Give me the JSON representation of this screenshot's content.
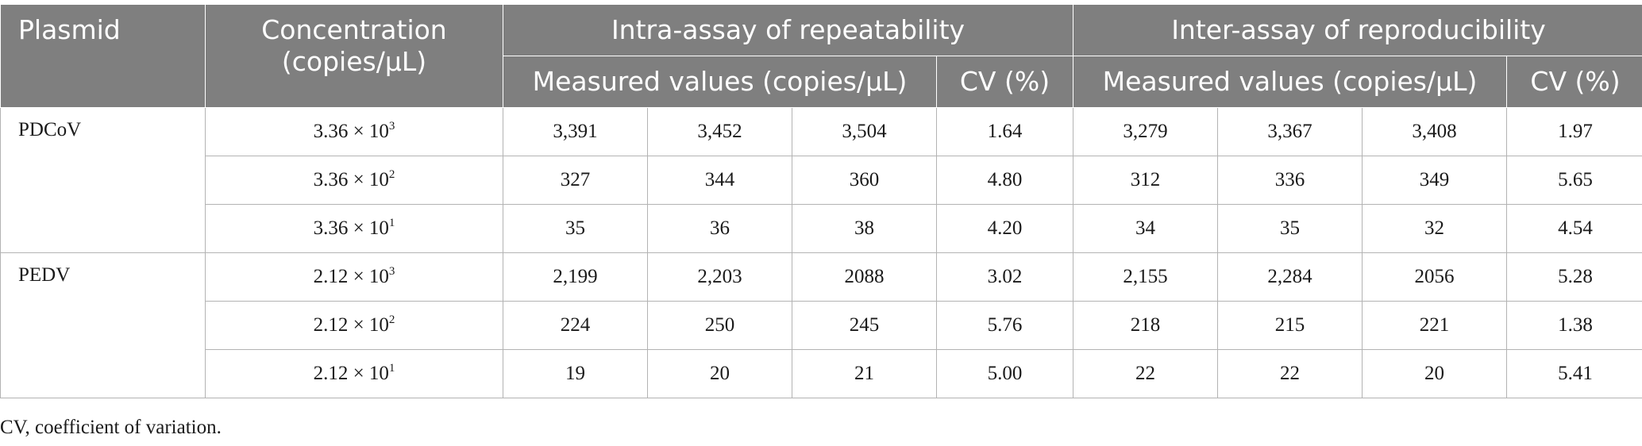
{
  "header": {
    "plasmid": "Plasmid",
    "concentration_line1": "Concentration",
    "concentration_line2": "(copies/μL)",
    "intra": "Intra-assay of repeatability",
    "inter": "Inter-assay of reproducibility",
    "measured_intra": "Measured values (copies/μL)",
    "cv_intra": "CV (%)",
    "measured_inter": "Measured values (copies/μL)",
    "cv_inter": "CV (%)"
  },
  "rows": [
    {
      "plasmid": "PDCoV",
      "conc_base": "3.36 × 10",
      "conc_exp": "3",
      "intra": [
        "3,391",
        "3,452",
        "3,504"
      ],
      "intra_cv": "1.64",
      "inter": [
        "3,279",
        "3,367",
        "3,408"
      ],
      "inter_cv": "1.97"
    },
    {
      "plasmid": "",
      "conc_base": "3.36 × 10",
      "conc_exp": "2",
      "intra": [
        "327",
        "344",
        "360"
      ],
      "intra_cv": "4.80",
      "inter": [
        "312",
        "336",
        "349"
      ],
      "inter_cv": "5.65"
    },
    {
      "plasmid": "",
      "conc_base": "3.36 × 10",
      "conc_exp": "1",
      "intra": [
        "35",
        "36",
        "38"
      ],
      "intra_cv": "4.20",
      "inter": [
        "34",
        "35",
        "32"
      ],
      "inter_cv": "4.54"
    },
    {
      "plasmid": "PEDV",
      "conc_base": "2.12 × 10",
      "conc_exp": "3",
      "intra": [
        "2,199",
        "2,203",
        "2088"
      ],
      "intra_cv": "3.02",
      "inter": [
        "2,155",
        "2,284",
        "2056"
      ],
      "inter_cv": "5.28"
    },
    {
      "plasmid": "",
      "conc_base": "2.12 × 10",
      "conc_exp": "2",
      "intra": [
        "224",
        "250",
        "245"
      ],
      "intra_cv": "5.76",
      "inter": [
        "218",
        "215",
        "221"
      ],
      "inter_cv": "1.38"
    },
    {
      "plasmid": "",
      "conc_base": "2.12 × 10",
      "conc_exp": "1",
      "intra": [
        "19",
        "20",
        "21"
      ],
      "intra_cv": "5.00",
      "inter": [
        "22",
        "22",
        "20"
      ],
      "inter_cv": "5.41"
    }
  ],
  "footnote": "CV, coefficient of variation."
}
